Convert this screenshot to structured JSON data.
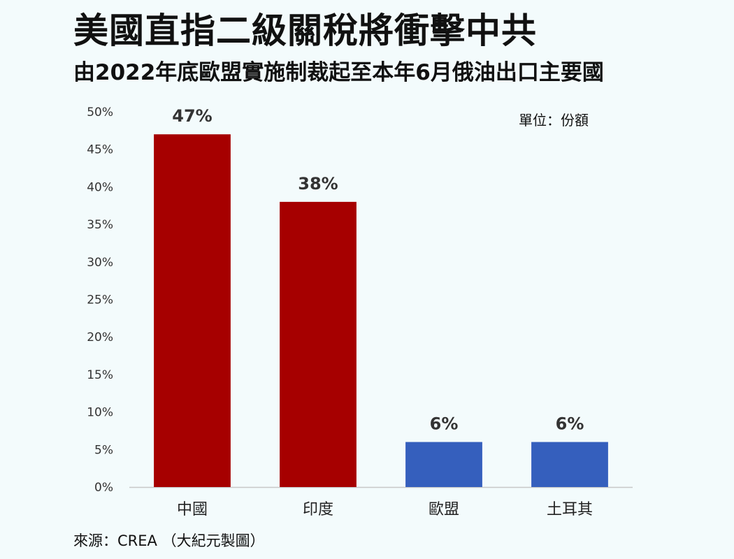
{
  "chart_data": {
    "type": "bar",
    "title": "美國直指二級關稅將衝擊中共",
    "subtitle": "由2022年底歐盟實施制裁起至本年6月俄油出口主要國",
    "unit_note": "單位：份額",
    "source": "來源：CREA （大紀元製圖）",
    "categories": [
      "中國",
      "印度",
      "歐盟",
      "土耳其"
    ],
    "values": [
      47,
      38,
      6,
      6
    ],
    "data_labels": [
      "47%",
      "38%",
      "6%",
      "6%"
    ],
    "bar_colors": [
      "#a60000",
      "#a60000",
      "#355fbd",
      "#355fbd"
    ],
    "ylim": [
      0,
      50
    ],
    "yticks": [
      0,
      5,
      10,
      15,
      20,
      25,
      30,
      35,
      40,
      45,
      50
    ],
    "ytick_labels": [
      "0%",
      "5%",
      "10%",
      "15%",
      "20%",
      "25%",
      "30%",
      "35%",
      "40%",
      "45%",
      "50%"
    ],
    "grid": false,
    "legend": "none"
  }
}
